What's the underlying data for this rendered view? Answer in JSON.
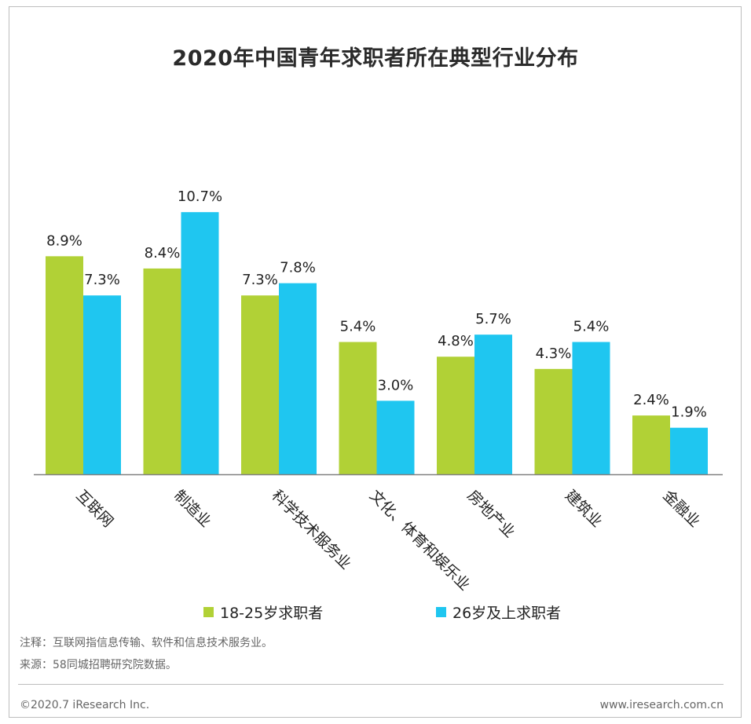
{
  "chart_data": {
    "type": "bar",
    "title": "2020年中国青年求职者所在典型行业分布",
    "categories": [
      "互联网",
      "制造业",
      "科学技术服务业",
      "文化、体育和娱乐业",
      "房地产业",
      "建筑业",
      "金融业"
    ],
    "series": [
      {
        "name": "18-25岁求职者",
        "color": "#b1d136",
        "values": [
          8.9,
          8.4,
          7.3,
          5.4,
          4.8,
          4.3,
          2.4
        ],
        "labels": [
          "8.9%",
          "8.4%",
          "7.3%",
          "5.4%",
          "4.8%",
          "4.3%",
          "2.4%"
        ]
      },
      {
        "name": "26岁及上求职者",
        "color": "#1fc6f0",
        "values": [
          7.3,
          10.7,
          7.8,
          3.0,
          5.7,
          5.4,
          1.9
        ],
        "labels": [
          "7.3%",
          "10.7%",
          "7.8%",
          "3.0%",
          "5.7%",
          "5.4%",
          "1.9%"
        ]
      }
    ],
    "unit": "%",
    "ylim": [
      0,
      12
    ],
    "grid": false,
    "legend_position": "bottom"
  },
  "notes": {
    "note1": "注释：互联网指信息传输、软件和信息技术服务业。",
    "note2": "来源：58同城招聘研究院数据。"
  },
  "footer": {
    "left": "©2020.7 iResearch Inc.",
    "right": "www.iresearch.com.cn"
  },
  "colors": {
    "axis": "#808080",
    "text": "#222222",
    "note": "#666666"
  }
}
